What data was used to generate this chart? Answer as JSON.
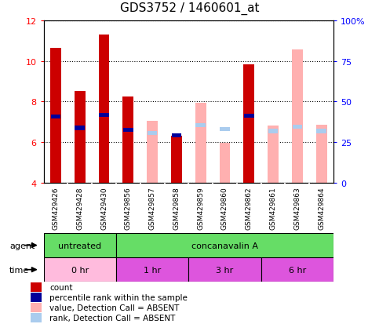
{
  "title": "GDS3752 / 1460601_at",
  "samples": [
    "GSM429426",
    "GSM429428",
    "GSM429430",
    "GSM429856",
    "GSM429857",
    "GSM429858",
    "GSM429859",
    "GSM429860",
    "GSM429862",
    "GSM429861",
    "GSM429863",
    "GSM429864"
  ],
  "red_values": [
    10.65,
    8.5,
    11.3,
    8.25,
    null,
    6.3,
    null,
    null,
    9.85,
    null,
    null,
    null
  ],
  "pink_values": [
    null,
    null,
    null,
    null,
    7.05,
    6.3,
    7.95,
    5.95,
    null,
    6.8,
    10.55,
    6.85
  ],
  "blue_values": [
    7.25,
    6.7,
    7.35,
    6.6,
    null,
    6.35,
    null,
    null,
    7.3,
    null,
    null,
    null
  ],
  "lightblue_values": [
    null,
    null,
    null,
    null,
    6.45,
    null,
    6.85,
    6.65,
    null,
    6.55,
    6.75,
    6.55
  ],
  "ylim": [
    4,
    12
  ],
  "yticks_left": [
    4,
    6,
    8,
    10,
    12
  ],
  "yticks_right": [
    0,
    25,
    50,
    75,
    100
  ],
  "bar_width": 0.45,
  "colors": {
    "red": "#CC0000",
    "pink": "#FFB0B0",
    "blue": "#000099",
    "lightblue": "#AACCEE",
    "agent_green": "#66DD66",
    "time_light_pink": "#FFBBDD",
    "time_violet": "#DD55DD",
    "bg_label": "#C8C8C8"
  },
  "agent_groups": [
    {
      "label": "untreated",
      "start": 0,
      "end": 3
    },
    {
      "label": "concanavalin A",
      "start": 3,
      "end": 12
    }
  ],
  "time_groups": [
    {
      "label": "0 hr",
      "start": 0,
      "end": 3,
      "light": true
    },
    {
      "label": "1 hr",
      "start": 3,
      "end": 6,
      "light": false
    },
    {
      "label": "3 hr",
      "start": 6,
      "end": 9,
      "light": false
    },
    {
      "label": "6 hr",
      "start": 9,
      "end": 12,
      "light": false
    }
  ],
  "legend_items": [
    {
      "color": "#CC0000",
      "label": "count"
    },
    {
      "color": "#000099",
      "label": "percentile rank within the sample"
    },
    {
      "color": "#FFB0B0",
      "label": "value, Detection Call = ABSENT"
    },
    {
      "color": "#AACCEE",
      "label": "rank, Detection Call = ABSENT"
    }
  ]
}
